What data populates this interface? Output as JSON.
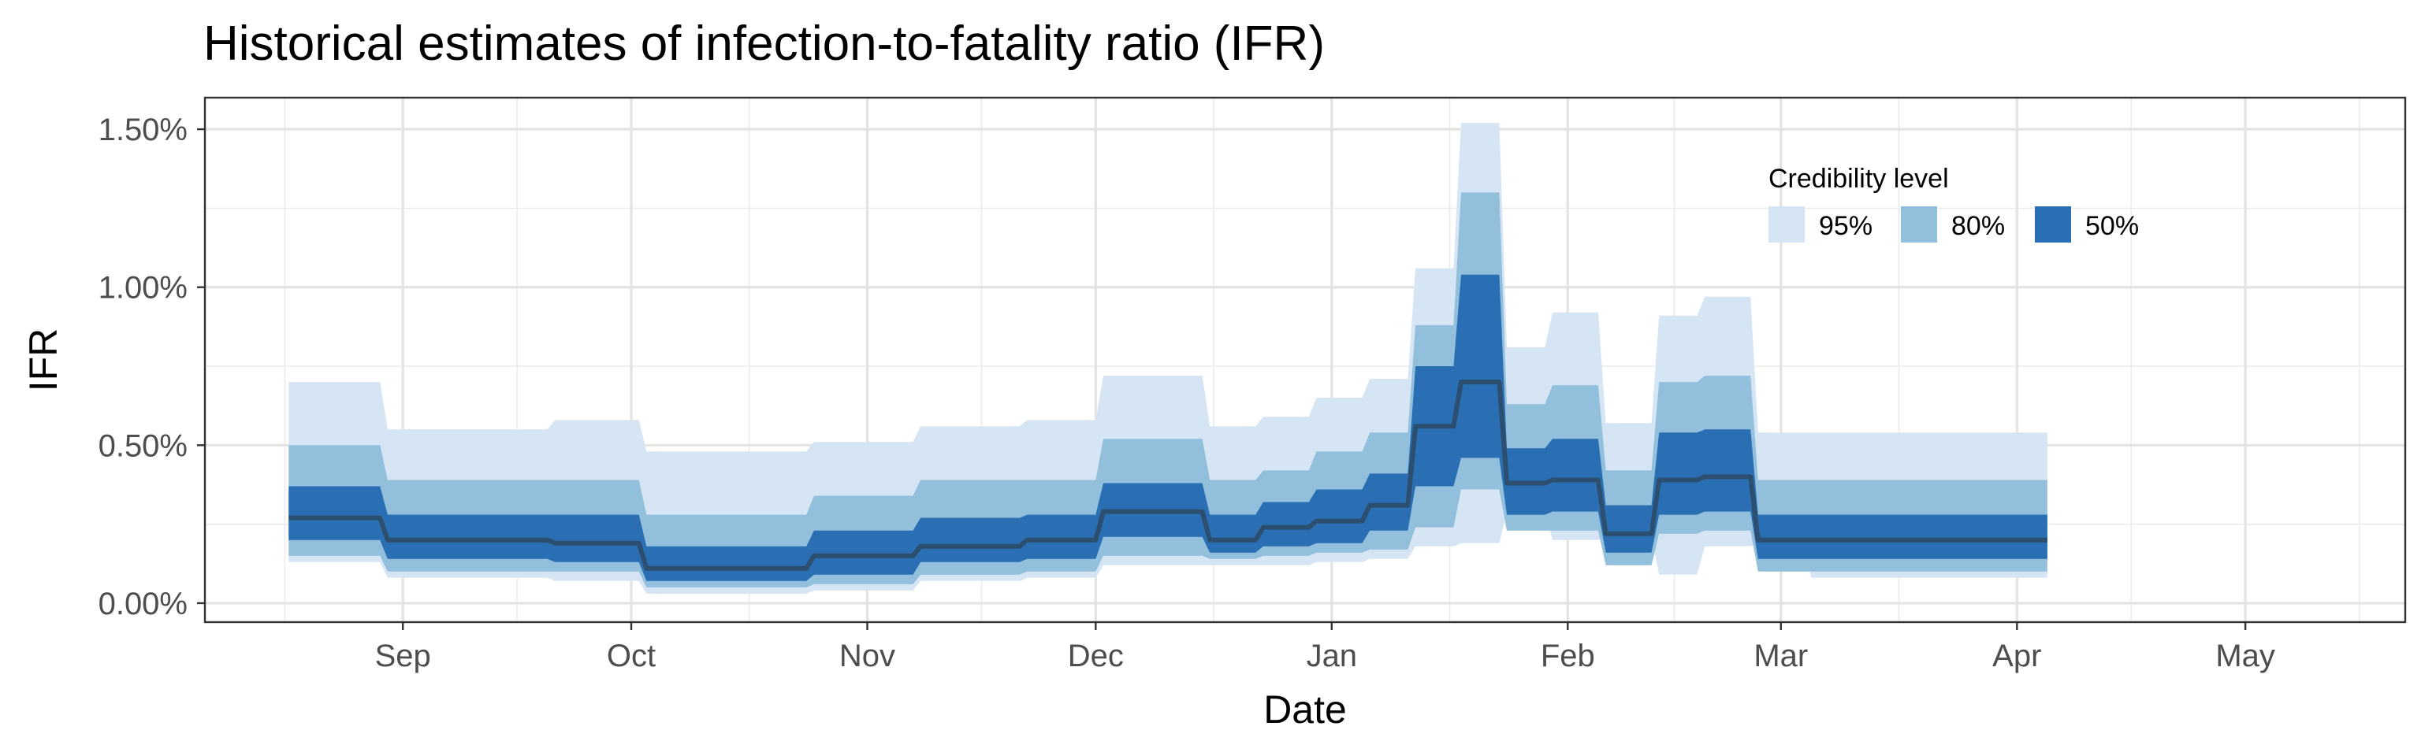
{
  "chart_data": {
    "type": "area",
    "title": "Historical estimates of infection-to-fatality ratio (IFR)",
    "xlabel": "Date",
    "ylabel": "IFR",
    "x_ticks": [
      "Sep",
      "Oct",
      "Nov",
      "Dec",
      "Jan",
      "Feb",
      "Mar",
      "Apr",
      "May"
    ],
    "y_ticks": [
      "0.00%",
      "0.50%",
      "1.00%",
      "1.50%"
    ],
    "ylim": [
      -0.0006,
      0.016
    ],
    "xlim": [
      "2020-08-06",
      "2021-05-22"
    ],
    "grid": true,
    "legend": {
      "title": "Credibility level",
      "position": "top-right",
      "entries": [
        {
          "label": "95%",
          "color": "#d6e5f4"
        },
        {
          "label": "80%",
          "color": "#92bfdc"
        },
        {
          "label": "50%",
          "color": "#2a6fb3"
        }
      ]
    },
    "median_color": "#2c4f70",
    "x": [
      "2020-08-17",
      "2020-08-29",
      "2020-08-30",
      "2020-09-20",
      "2020-09-21",
      "2020-10-02",
      "2020-10-03",
      "2020-10-24",
      "2020-10-25",
      "2020-11-07",
      "2020-11-08",
      "2020-11-21",
      "2020-11-22",
      "2020-12-01",
      "2020-12-02",
      "2020-12-15",
      "2020-12-16",
      "2020-12-22",
      "2020-12-23",
      "2020-12-29",
      "2020-12-30",
      "2021-01-05",
      "2021-01-06",
      "2021-01-11",
      "2021-01-12",
      "2021-01-17",
      "2021-01-18",
      "2021-01-23",
      "2021-01-24",
      "2021-01-29",
      "2021-01-30",
      "2021-02-05",
      "2021-02-06",
      "2021-02-12",
      "2021-02-13",
      "2021-02-18",
      "2021-02-19",
      "2021-02-25",
      "2021-02-26",
      "2021-03-04",
      "2021-03-05",
      "2021-04-05"
    ],
    "series": [
      {
        "name": "95%",
        "lower": [
          0.0013,
          0.0013,
          0.0008,
          0.0008,
          0.0007,
          0.0007,
          0.0003,
          0.0003,
          0.0004,
          0.0004,
          0.0007,
          0.0007,
          0.0008,
          0.0008,
          0.0012,
          0.0012,
          0.0012,
          0.0012,
          0.0012,
          0.0012,
          0.0013,
          0.0013,
          0.0014,
          0.0014,
          0.0018,
          0.0018,
          0.0019,
          0.0019,
          0.0029,
          0.0029,
          0.002,
          0.002,
          0.0021,
          0.0021,
          0.0009,
          0.0009,
          0.0018,
          0.0018,
          0.0019,
          0.0019,
          0.0008,
          0.0008
        ],
        "upper": [
          0.007,
          0.007,
          0.0055,
          0.0055,
          0.0058,
          0.0058,
          0.0048,
          0.0048,
          0.0051,
          0.0051,
          0.0056,
          0.0056,
          0.0058,
          0.0058,
          0.0072,
          0.0072,
          0.0056,
          0.0056,
          0.0059,
          0.0059,
          0.0065,
          0.0065,
          0.0071,
          0.0071,
          0.0106,
          0.0106,
          0.0152,
          0.0152,
          0.0081,
          0.0081,
          0.0092,
          0.0092,
          0.0057,
          0.0057,
          0.0091,
          0.0091,
          0.0097,
          0.0097,
          0.0054,
          0.0054,
          0.0054,
          0.0054
        ]
      },
      {
        "name": "80%",
        "lower": [
          0.0015,
          0.0015,
          0.001,
          0.001,
          0.001,
          0.001,
          0.0005,
          0.0005,
          0.0006,
          0.0006,
          0.0009,
          0.0009,
          0.001,
          0.001,
          0.0015,
          0.0015,
          0.0014,
          0.0014,
          0.0015,
          0.0015,
          0.0016,
          0.0016,
          0.0017,
          0.0017,
          0.0024,
          0.0024,
          0.0036,
          0.0036,
          0.0023,
          0.0023,
          0.0023,
          0.0023,
          0.0012,
          0.0012,
          0.0022,
          0.0022,
          0.0023,
          0.0023,
          0.001,
          0.001,
          0.001,
          0.001
        ],
        "upper": [
          0.005,
          0.005,
          0.0039,
          0.0039,
          0.0039,
          0.0039,
          0.0028,
          0.0028,
          0.0034,
          0.0034,
          0.0039,
          0.0039,
          0.0039,
          0.0039,
          0.0052,
          0.0052,
          0.0039,
          0.0039,
          0.0042,
          0.0042,
          0.0048,
          0.0048,
          0.0054,
          0.0054,
          0.0088,
          0.0088,
          0.013,
          0.013,
          0.0063,
          0.0063,
          0.0069,
          0.0069,
          0.0042,
          0.0042,
          0.007,
          0.007,
          0.0072,
          0.0072,
          0.0039,
          0.0039,
          0.0039,
          0.0039
        ]
      },
      {
        "name": "50%",
        "lower": [
          0.002,
          0.002,
          0.0014,
          0.0014,
          0.0013,
          0.0013,
          0.0007,
          0.0007,
          0.0009,
          0.0009,
          0.0013,
          0.0013,
          0.0014,
          0.0014,
          0.0021,
          0.0021,
          0.0016,
          0.0016,
          0.0018,
          0.0018,
          0.0019,
          0.0019,
          0.0023,
          0.0023,
          0.0037,
          0.0037,
          0.0046,
          0.0046,
          0.0028,
          0.0028,
          0.0029,
          0.0029,
          0.0016,
          0.0016,
          0.0028,
          0.0028,
          0.0029,
          0.0029,
          0.0014,
          0.0014,
          0.0014,
          0.0014
        ],
        "upper": [
          0.0037,
          0.0037,
          0.0028,
          0.0028,
          0.0028,
          0.0028,
          0.0018,
          0.0018,
          0.0023,
          0.0023,
          0.0027,
          0.0027,
          0.0028,
          0.0028,
          0.0038,
          0.0038,
          0.0028,
          0.0028,
          0.0032,
          0.0032,
          0.0036,
          0.0036,
          0.0041,
          0.0041,
          0.0075,
          0.0075,
          0.0104,
          0.0104,
          0.0049,
          0.0049,
          0.0052,
          0.0052,
          0.0031,
          0.0031,
          0.0054,
          0.0054,
          0.0055,
          0.0055,
          0.0028,
          0.0028,
          0.0028,
          0.0028
        ]
      }
    ],
    "median": [
      0.0027,
      0.0027,
      0.002,
      0.002,
      0.0019,
      0.0019,
      0.0011,
      0.0011,
      0.0015,
      0.0015,
      0.0018,
      0.0018,
      0.002,
      0.002,
      0.0029,
      0.0029,
      0.002,
      0.002,
      0.0024,
      0.0024,
      0.0026,
      0.0026,
      0.0031,
      0.0031,
      0.0056,
      0.0056,
      0.007,
      0.007,
      0.0038,
      0.0038,
      0.0039,
      0.0039,
      0.0022,
      0.0022,
      0.0039,
      0.0039,
      0.004,
      0.004,
      0.002,
      0.002,
      0.002,
      0.002
    ]
  }
}
